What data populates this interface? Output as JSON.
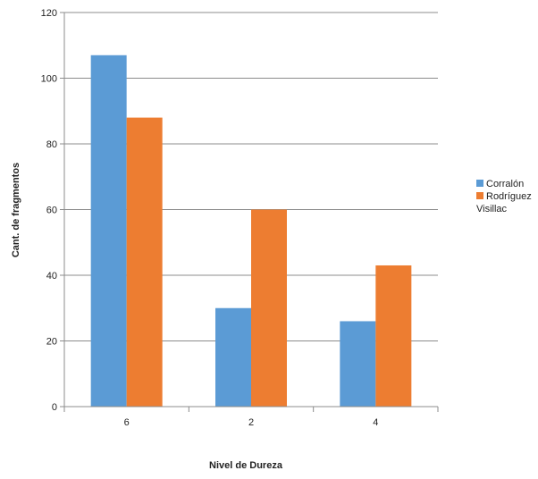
{
  "chart_data": {
    "type": "bar",
    "categories": [
      "6",
      "2",
      "4"
    ],
    "series": [
      {
        "name": "Corralón",
        "values": [
          107,
          30,
          26
        ],
        "color": "#5b9bd5"
      },
      {
        "name": "Rodríguez Visillac",
        "values": [
          88,
          60,
          43
        ],
        "color": "#ed7d31"
      }
    ],
    "xlabel": "Nivel de Dureza",
    "ylabel": "Cant. de fragmentos",
    "ylim": [
      0,
      120
    ],
    "yticks": [
      0,
      20,
      40,
      60,
      80,
      100,
      120
    ],
    "grid": true,
    "legend_position": "right"
  }
}
